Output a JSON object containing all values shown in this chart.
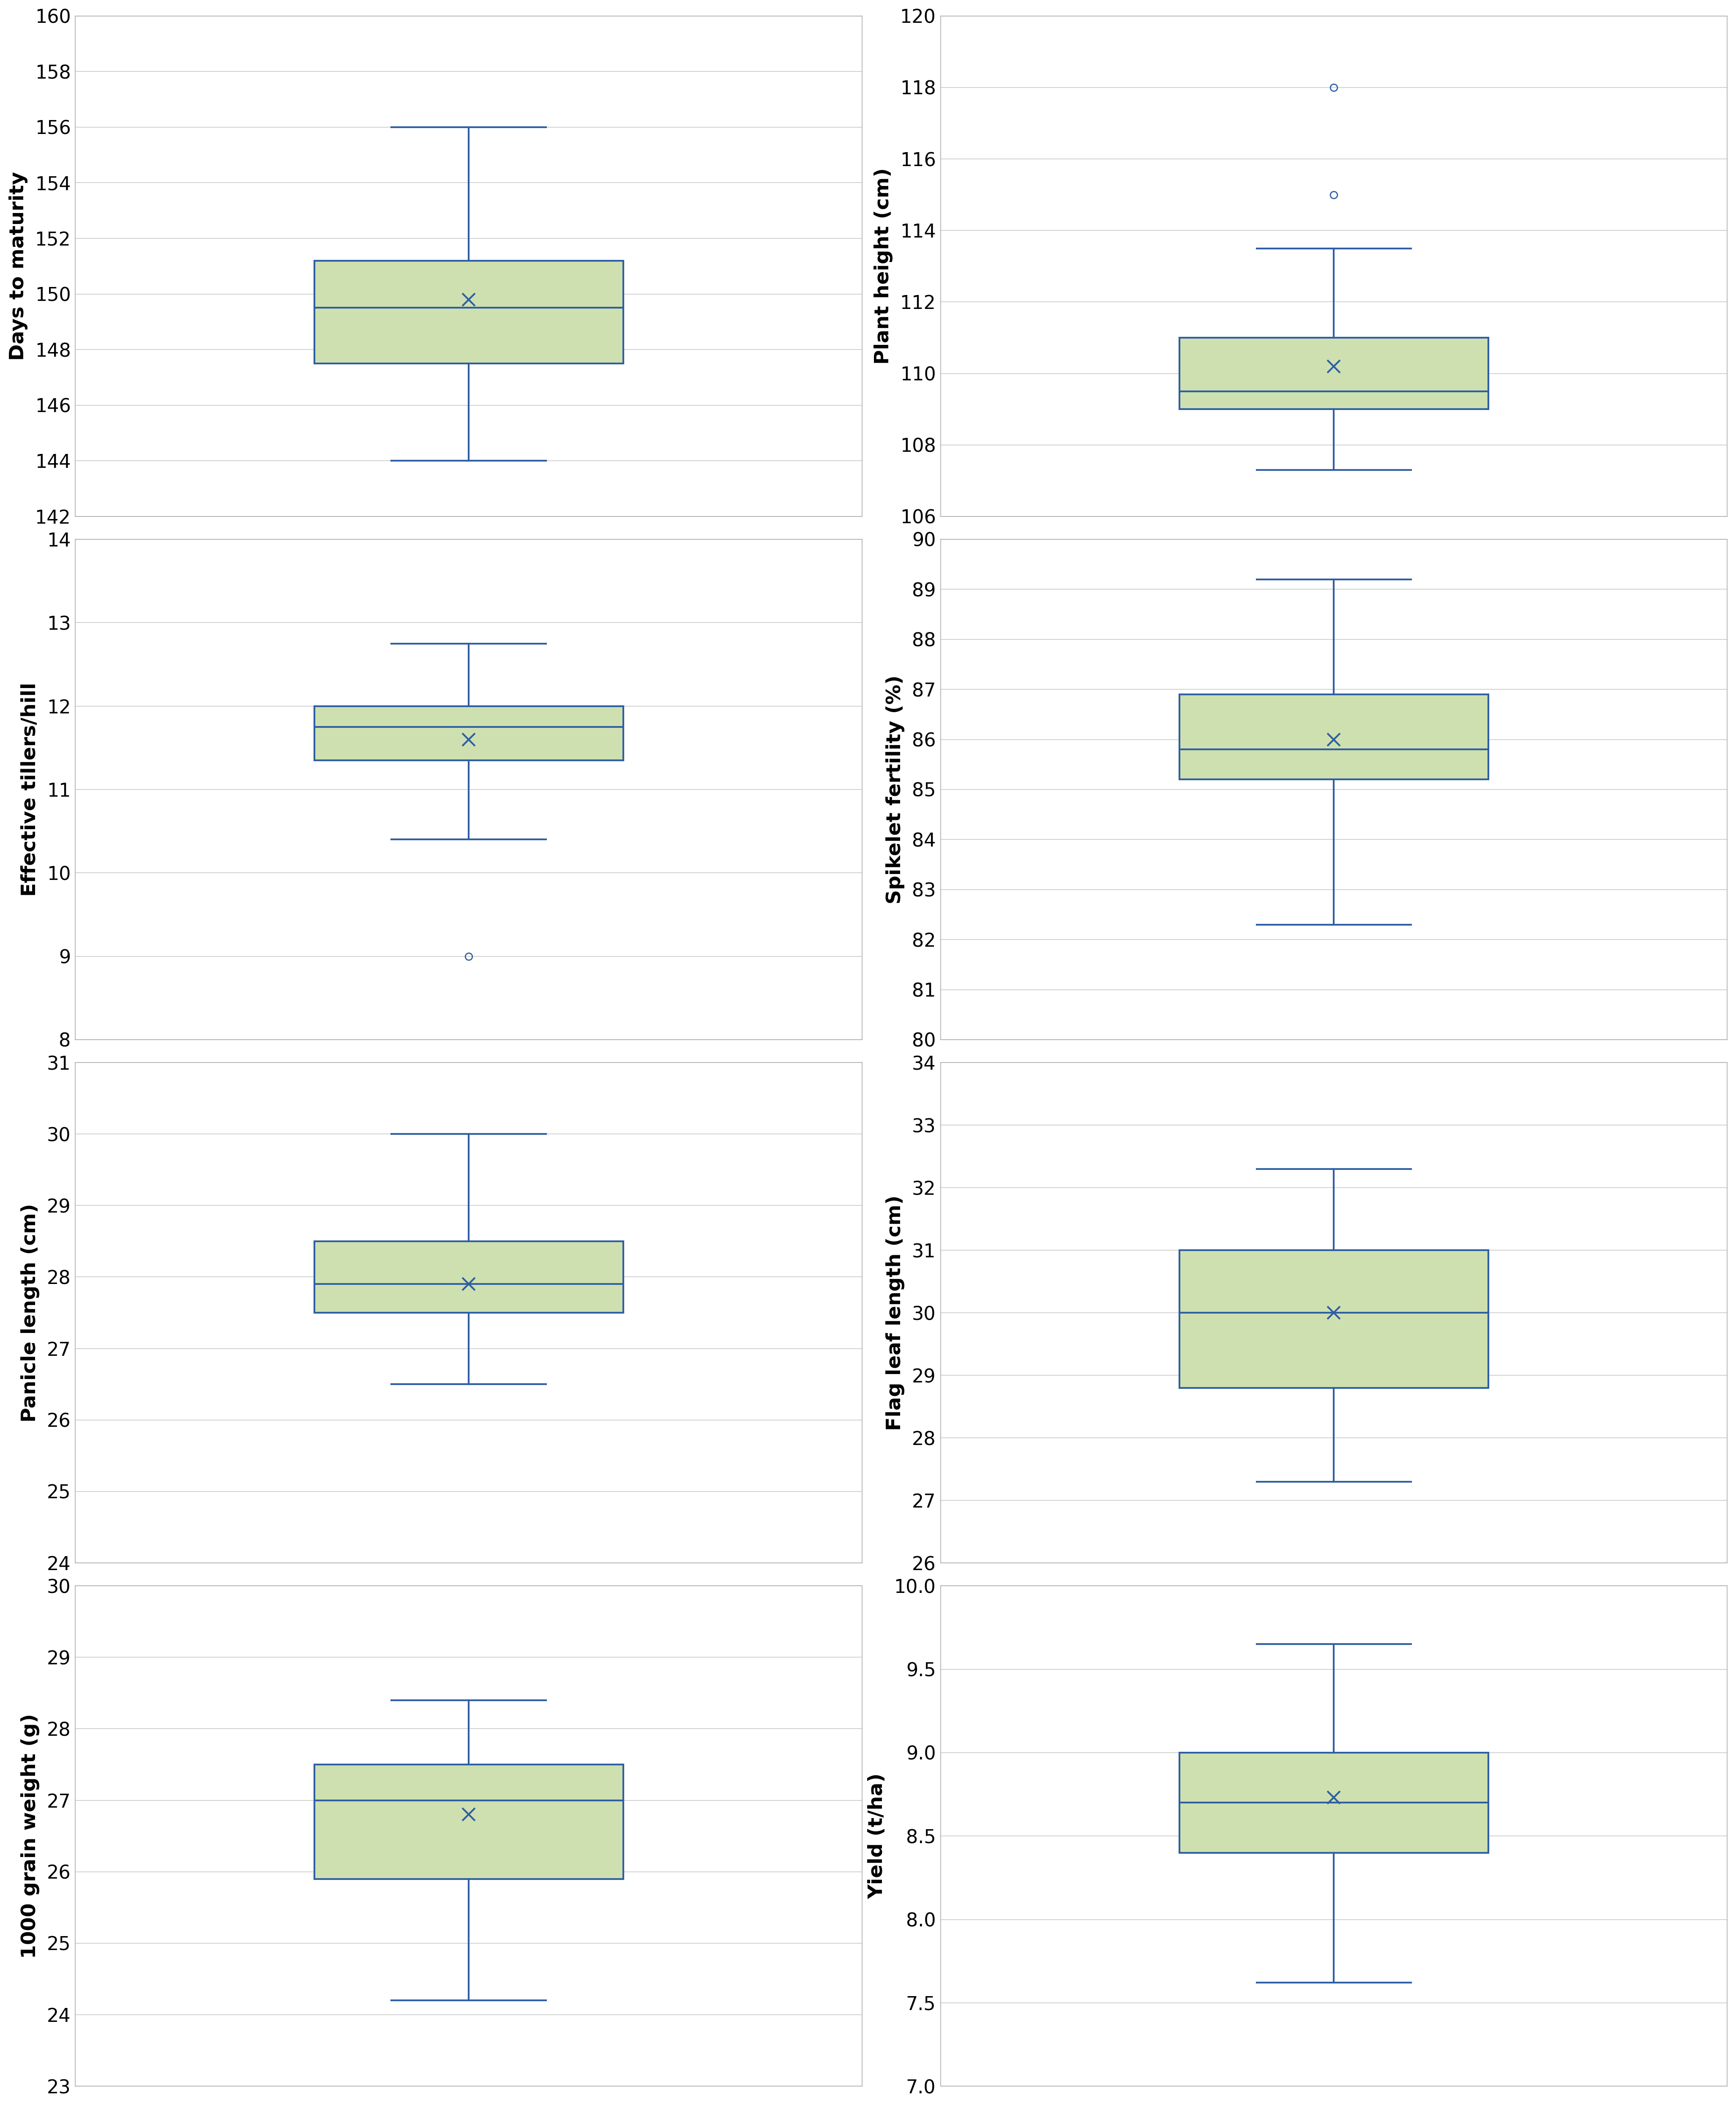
{
  "plots": [
    {
      "ylabel": "Days to maturity",
      "ylim": [
        142,
        160
      ],
      "yticks": [
        142,
        144,
        146,
        148,
        150,
        152,
        154,
        156,
        158,
        160
      ],
      "whislo": 144.0,
      "q1": 147.5,
      "med": 149.5,
      "q3": 151.2,
      "whishi": 156.0,
      "mean": 149.8,
      "fliers": []
    },
    {
      "ylabel": "Plant height (cm)",
      "ylim": [
        106,
        120
      ],
      "yticks": [
        106,
        108,
        110,
        112,
        114,
        116,
        118,
        120
      ],
      "whislo": 107.3,
      "q1": 109.0,
      "med": 109.5,
      "q3": 111.0,
      "whishi": 113.5,
      "mean": 110.2,
      "fliers": [
        115.0,
        118.0
      ]
    },
    {
      "ylabel": "Effective tillers/hill",
      "ylim": [
        8,
        14
      ],
      "yticks": [
        8,
        9,
        10,
        11,
        12,
        13,
        14
      ],
      "whislo": 10.4,
      "q1": 11.35,
      "med": 11.75,
      "q3": 12.0,
      "whishi": 12.75,
      "mean": 11.6,
      "fliers": [
        9.0
      ]
    },
    {
      "ylabel": "Spikelet fertility (%)",
      "ylim": [
        80,
        90
      ],
      "yticks": [
        80,
        81,
        82,
        83,
        84,
        85,
        86,
        87,
        88,
        89,
        90
      ],
      "whislo": 82.3,
      "q1": 85.2,
      "med": 85.8,
      "q3": 86.9,
      "whishi": 89.2,
      "mean": 86.0,
      "fliers": []
    },
    {
      "ylabel": "Panicle length (cm)",
      "ylim": [
        24,
        31
      ],
      "yticks": [
        24,
        25,
        26,
        27,
        28,
        29,
        30,
        31
      ],
      "whislo": 26.5,
      "q1": 27.5,
      "med": 27.9,
      "q3": 28.5,
      "whishi": 30.0,
      "mean": 27.9,
      "fliers": []
    },
    {
      "ylabel": "Flag leaf length (cm)",
      "ylim": [
        26,
        34
      ],
      "yticks": [
        26,
        27,
        28,
        29,
        30,
        31,
        32,
        33,
        34
      ],
      "whislo": 27.3,
      "q1": 28.8,
      "med": 30.0,
      "q3": 31.0,
      "whishi": 32.3,
      "mean": 30.0,
      "fliers": []
    },
    {
      "ylabel": "1000 grain weight (g)",
      "ylim": [
        23,
        30
      ],
      "yticks": [
        23,
        24,
        25,
        26,
        27,
        28,
        29,
        30
      ],
      "whislo": 24.2,
      "q1": 25.9,
      "med": 27.0,
      "q3": 27.5,
      "whishi": 28.4,
      "mean": 26.8,
      "fliers": []
    },
    {
      "ylabel": "Yield (t/ha)",
      "ylim": [
        7.0,
        10.0
      ],
      "yticks": [
        7.0,
        7.5,
        8.0,
        8.5,
        9.0,
        9.5,
        10.0
      ],
      "whislo": 7.62,
      "q1": 8.4,
      "med": 8.7,
      "q3": 9.0,
      "whishi": 9.65,
      "mean": 8.73,
      "fliers": []
    }
  ],
  "box_facecolor": "#cfe0b0",
  "box_edgecolor": "#2e5fa3",
  "median_color": "#2e5fa3",
  "whisker_color": "#2e5fa3",
  "flier_color": "#2e5fa3",
  "mean_marker_color": "#2e5fa3",
  "grid_color": "#c8c8c8",
  "background_color": "#ffffff",
  "ylabel_fontsize": 34,
  "tick_fontsize": 32,
  "linewidth": 3.0,
  "box_width": 0.55
}
